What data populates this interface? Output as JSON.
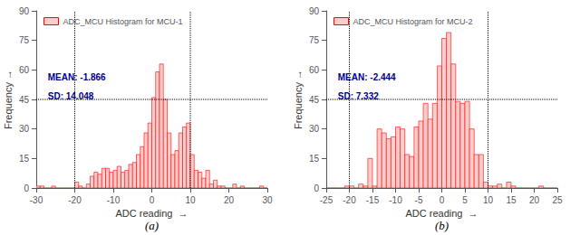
{
  "chart_data": [
    {
      "type": "histogram",
      "xlabel": "ADC reading  →",
      "ylabel": "Frequency →",
      "caption": "(a)",
      "xlim": [
        -30,
        30
      ],
      "ylim": [
        0,
        90
      ],
      "xticks": [
        -30,
        -20,
        -10,
        0,
        10,
        20,
        30
      ],
      "yticks": [
        0,
        15,
        30,
        45,
        60,
        75,
        90
      ],
      "grid": false,
      "legend": "upper left",
      "bins": [
        -30,
        -29,
        -28,
        -27,
        -26,
        -25,
        -24,
        -23,
        -22,
        -21,
        -20,
        -19,
        -18,
        -17,
        -16,
        -15,
        -14,
        -13,
        -12,
        -11,
        -10,
        -9,
        -8,
        -7,
        -6,
        -5,
        -4,
        -3,
        -2,
        -1,
        0,
        1,
        2,
        3,
        4,
        5,
        6,
        7,
        8,
        9,
        10,
        11,
        12,
        13,
        14,
        15,
        16,
        17,
        18,
        19,
        20,
        21,
        22,
        23,
        24,
        25,
        26,
        27,
        28,
        29,
        30
      ],
      "series": [
        {
          "name": "ADC_MCU Histogram for MCU-1",
          "color": "#FFCCCC",
          "edge_color": "#FF0000",
          "values": [
            1,
            1,
            0,
            0,
            1,
            0,
            0,
            0,
            0,
            0,
            3,
            1,
            0,
            2,
            6,
            8,
            7,
            10,
            10,
            8,
            9,
            11,
            8,
            9,
            12,
            13,
            17,
            21,
            28,
            33,
            46,
            59,
            63,
            45,
            28,
            17,
            19,
            28,
            31,
            33,
            17,
            9,
            8,
            5,
            9,
            2,
            4,
            1,
            1,
            0,
            0,
            2,
            0,
            1,
            0,
            0,
            0,
            0,
            1,
            0
          ]
        }
      ],
      "reference_lines": {
        "x": [
          -20,
          10
        ],
        "y": [
          45
        ],
        "color": "#000000",
        "line_style": "dotted"
      },
      "annotations": {
        "texts": [
          "MEAN: -1.866",
          "SD: 14.048"
        ],
        "color": "#00008B"
      }
    },
    {
      "type": "histogram",
      "xlabel": "ADC reading  →",
      "ylabel": "Frequency →",
      "caption": "(b)",
      "xlim": [
        -25,
        25
      ],
      "ylim": [
        0,
        90
      ],
      "xticks": [
        -25,
        -20,
        -15,
        -10,
        -5,
        0,
        5,
        10,
        15,
        20,
        25
      ],
      "yticks": [
        0,
        15,
        30,
        45,
        60,
        75,
        90
      ],
      "grid": false,
      "legend": "upper left",
      "bins": [
        -25,
        -24,
        -23,
        -22,
        -21,
        -20,
        -19,
        -18,
        -17,
        -16,
        -15,
        -14,
        -13,
        -12,
        -11,
        -10,
        -9,
        -8,
        -7,
        -6,
        -5,
        -4,
        -3,
        -2,
        -1,
        0,
        1,
        2,
        3,
        4,
        5,
        6,
        7,
        8,
        9,
        10,
        11,
        12,
        13,
        14,
        15,
        16,
        17,
        18,
        19,
        20,
        21,
        22,
        23,
        24,
        25,
        26
      ],
      "series": [
        {
          "name": "ADC_MCU Histogram for MCU-2",
          "color": "#FFCCCC",
          "edge_color": "#FF0000",
          "values": [
            0,
            0,
            0,
            0,
            1,
            1,
            0,
            2,
            1,
            15,
            1,
            30,
            28,
            25,
            26,
            31,
            30,
            17,
            16,
            31,
            34,
            43,
            35,
            43,
            62,
            76,
            79,
            63,
            44,
            43,
            44,
            30,
            17,
            17,
            3,
            1,
            1,
            2,
            0,
            3,
            1,
            0,
            0,
            0,
            0,
            0,
            1,
            0,
            0,
            0,
            0
          ]
        }
      ],
      "reference_lines": {
        "x": [
          -20,
          10
        ],
        "y": [
          45
        ],
        "color": "#000000",
        "line_style": "dotted"
      },
      "annotations": {
        "texts": [
          "MEAN: -2.444",
          "SD: 7.332"
        ],
        "color": "#00008B"
      }
    }
  ]
}
